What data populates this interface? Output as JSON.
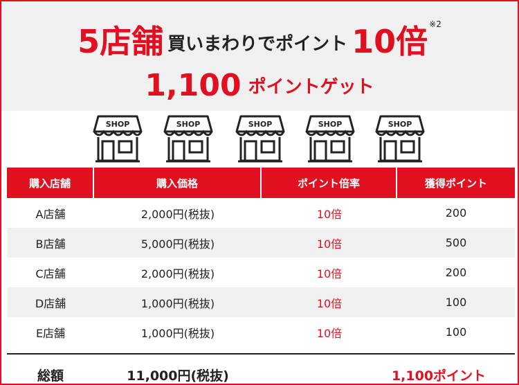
{
  "headline": {
    "store_count": "5店舗",
    "middle_text": "買いまわりでポイント",
    "multiplier": "10倍",
    "note": "※2",
    "points": "1,100",
    "points_suffix": "ポイントゲット"
  },
  "shop_icon_label": "SHOP",
  "shops": [
    {
      "label": "SHOP"
    },
    {
      "label": "SHOP"
    },
    {
      "label": "SHOP"
    },
    {
      "label": "SHOP"
    },
    {
      "label": "SHOP"
    }
  ],
  "table": {
    "headers": [
      "購入店舗",
      "購入価格",
      "ポイント倍率",
      "獲得ポイント"
    ],
    "rows": [
      {
        "store": "A店舗",
        "price": "2,000円(税抜)",
        "rate": "10倍",
        "points": "200"
      },
      {
        "store": "B店舗",
        "price": "5,000円(税抜)",
        "rate": "10倍",
        "points": "500"
      },
      {
        "store": "C店舗",
        "price": "2,000円(税抜)",
        "rate": "10倍",
        "points": "200"
      },
      {
        "store": "D店舗",
        "price": "1,000円(税抜)",
        "rate": "10倍",
        "points": "100"
      },
      {
        "store": "E店舗",
        "price": "1,000円(税抜)",
        "rate": "10倍",
        "points": "100"
      }
    ],
    "total": {
      "label": "総額",
      "price": "11,000円(税抜)",
      "points": "1,100ポイント"
    }
  },
  "colors": {
    "accent": "#e01020",
    "band": "#f0f0f0",
    "text": "#222222"
  }
}
